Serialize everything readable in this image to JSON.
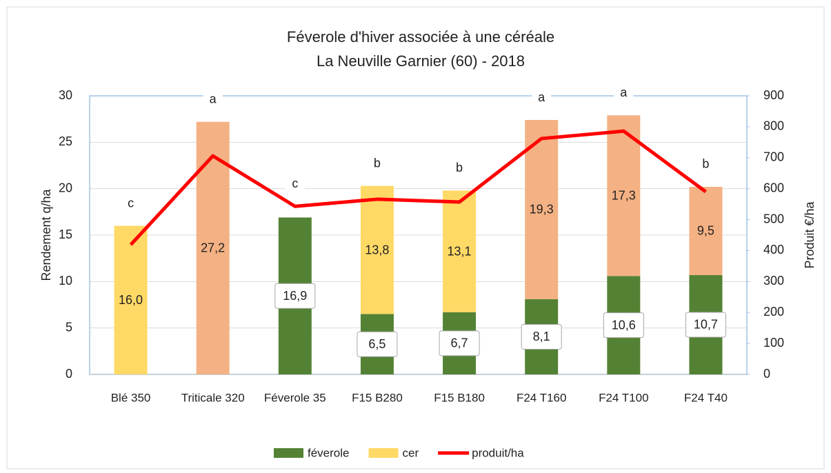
{
  "chart_data": {
    "type": "bar",
    "title": "Féverole d'hiver associée à une céréale",
    "subtitle": "La Neuville Garnier  (60) - 2018",
    "y_label": "Rendement   q/ha",
    "y2_label": "Produit  €/ha",
    "categories": [
      "Blé 350",
      "Triticale 320",
      "Féverole 35",
      "F15 B280",
      "F15 B180",
      "F24 T160",
      "F24 T100",
      "F24 T40"
    ],
    "series": [
      {
        "name": "féverole",
        "type": "bar",
        "color": "#548235",
        "values": [
          null,
          null,
          16.9,
          6.5,
          6.7,
          8.1,
          10.6,
          10.7
        ],
        "value_labels": [
          null,
          null,
          "16,9",
          "6,5",
          "6,7",
          "8,1",
          "10,6",
          "10,7"
        ]
      },
      {
        "name": "cer",
        "type": "bar",
        "color": "#ffd966",
        "point_colors": [
          "#ffd966",
          "#f4b183",
          "#ffd966",
          "#ffd966",
          "#ffd966",
          "#f4b183",
          "#f4b183",
          "#f4b183"
        ],
        "values": [
          16.0,
          27.2,
          null,
          13.8,
          13.1,
          19.3,
          17.3,
          9.5
        ],
        "value_labels": [
          "16,0",
          "27,2",
          null,
          "13,8",
          "13,1",
          "19,3",
          "17,3",
          "9,5"
        ]
      },
      {
        "name": "produit/ha",
        "type": "line",
        "color": "#ff0000",
        "axis": "y2",
        "values": [
          419,
          706,
          543,
          566,
          557,
          762,
          786,
          590
        ]
      }
    ],
    "annotations": [
      "c",
      "a",
      "c",
      "b",
      "b",
      "a",
      "a",
      "b"
    ],
    "ylim": [
      0,
      30
    ],
    "yticks": [
      0,
      5,
      10,
      15,
      20,
      25,
      30
    ],
    "y2lim": [
      0,
      900
    ],
    "y2ticks": [
      0,
      100,
      200,
      300,
      400,
      500,
      600,
      700,
      800,
      900
    ],
    "grid": true,
    "legend": "bottom"
  }
}
